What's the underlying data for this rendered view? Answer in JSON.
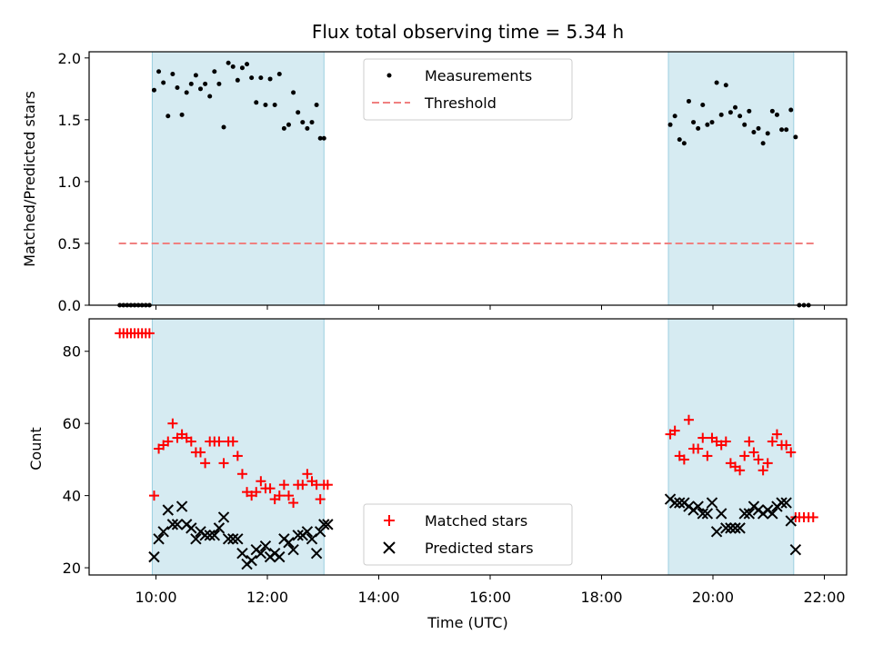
{
  "chart_data": [
    {
      "type": "scatter",
      "title": "Flux total observing time = 5.34 h",
      "xlabel": "",
      "ylabel": "Matched/Predicted stars",
      "ylim": [
        0,
        2.05
      ],
      "xlim": [
        "08:48",
        "22:24"
      ],
      "yticks": [
        "0.0",
        "0.5",
        "1.0",
        "1.5",
        "2.0"
      ],
      "grid": false,
      "legend_position": "top-center",
      "highlight_intervals": [
        [
          "09:56",
          "13:01"
        ],
        [
          "19:12",
          "21:27"
        ]
      ],
      "threshold": {
        "name": "Threshold",
        "value": 0.5,
        "x_range": [
          "09:20",
          "21:50"
        ],
        "color": "#f08080"
      },
      "series": [
        {
          "name": "Measurements",
          "color": "#000000",
          "points": [
            [
              "09:21",
              0
            ],
            [
              "09:25",
              0
            ],
            [
              "09:29",
              0
            ],
            [
              "09:33",
              0
            ],
            [
              "09:37",
              0
            ],
            [
              "09:41",
              0
            ],
            [
              "09:45",
              0
            ],
            [
              "09:49",
              0
            ],
            [
              "09:53",
              0
            ],
            [
              "09:58",
              1.74
            ],
            [
              "10:03",
              1.89
            ],
            [
              "10:08",
              1.8
            ],
            [
              "10:13",
              1.53
            ],
            [
              "10:18",
              1.87
            ],
            [
              "10:23",
              1.76
            ],
            [
              "10:28",
              1.54
            ],
            [
              "10:33",
              1.72
            ],
            [
              "10:38",
              1.79
            ],
            [
              "10:43",
              1.86
            ],
            [
              "10:48",
              1.75
            ],
            [
              "10:53",
              1.79
            ],
            [
              "10:58",
              1.69
            ],
            [
              "11:03",
              1.89
            ],
            [
              "11:08",
              1.79
            ],
            [
              "11:13",
              1.44
            ],
            [
              "11:18",
              1.96
            ],
            [
              "11:23",
              1.93
            ],
            [
              "11:28",
              1.82
            ],
            [
              "11:33",
              1.92
            ],
            [
              "11:38",
              1.95
            ],
            [
              "11:43",
              1.84
            ],
            [
              "11:48",
              1.64
            ],
            [
              "11:53",
              1.84
            ],
            [
              "11:58",
              1.62
            ],
            [
              "12:03",
              1.83
            ],
            [
              "12:08",
              1.62
            ],
            [
              "12:13",
              1.87
            ],
            [
              "12:18",
              1.43
            ],
            [
              "12:23",
              1.46
            ],
            [
              "12:28",
              1.72
            ],
            [
              "12:33",
              1.56
            ],
            [
              "12:38",
              1.48
            ],
            [
              "12:43",
              1.43
            ],
            [
              "12:48",
              1.48
            ],
            [
              "12:53",
              1.62
            ],
            [
              "12:57",
              1.35
            ],
            [
              "13:01",
              1.35
            ],
            [
              "19:14",
              1.46
            ],
            [
              "19:19",
              1.53
            ],
            [
              "19:24",
              1.34
            ],
            [
              "19:29",
              1.31
            ],
            [
              "19:34",
              1.65
            ],
            [
              "19:39",
              1.48
            ],
            [
              "19:44",
              1.43
            ],
            [
              "19:49",
              1.62
            ],
            [
              "19:54",
              1.46
            ],
            [
              "19:59",
              1.48
            ],
            [
              "20:04",
              1.8
            ],
            [
              "20:09",
              1.54
            ],
            [
              "20:14",
              1.78
            ],
            [
              "20:19",
              1.56
            ],
            [
              "20:24",
              1.6
            ],
            [
              "20:29",
              1.53
            ],
            [
              "20:34",
              1.46
            ],
            [
              "20:39",
              1.57
            ],
            [
              "20:44",
              1.4
            ],
            [
              "20:49",
              1.43
            ],
            [
              "20:54",
              1.31
            ],
            [
              "20:59",
              1.39
            ],
            [
              "21:04",
              1.57
            ],
            [
              "21:09",
              1.54
            ],
            [
              "21:14",
              1.42
            ],
            [
              "21:19",
              1.42
            ],
            [
              "21:24",
              1.58
            ],
            [
              "21:29",
              1.36
            ],
            [
              "21:33",
              0
            ],
            [
              "21:38",
              0
            ],
            [
              "21:43",
              0
            ]
          ]
        }
      ]
    },
    {
      "type": "scatter",
      "title": "",
      "xlabel": "Time (UTC)",
      "ylabel": "Count",
      "ylim": [
        18,
        89
      ],
      "xlim": [
        "08:48",
        "22:24"
      ],
      "yticks": [
        "20",
        "40",
        "60",
        "80"
      ],
      "xticks": [
        "10:00",
        "12:00",
        "14:00",
        "16:00",
        "18:00",
        "20:00",
        "22:00"
      ],
      "grid": false,
      "legend_position": "bottom-center",
      "highlight_intervals": [
        [
          "09:56",
          "13:01"
        ],
        [
          "19:12",
          "21:27"
        ]
      ],
      "series": [
        {
          "name": "Matched stars",
          "marker": "plus",
          "color": "#ff0000",
          "points": [
            [
              "09:21",
              85
            ],
            [
              "09:25",
              85
            ],
            [
              "09:29",
              85
            ],
            [
              "09:33",
              85
            ],
            [
              "09:37",
              85
            ],
            [
              "09:41",
              85
            ],
            [
              "09:45",
              85
            ],
            [
              "09:49",
              85
            ],
            [
              "09:53",
              85
            ],
            [
              "09:58",
              40
            ],
            [
              "10:03",
              53
            ],
            [
              "10:08",
              54
            ],
            [
              "10:13",
              55
            ],
            [
              "10:18",
              60
            ],
            [
              "10:23",
              56
            ],
            [
              "10:28",
              57
            ],
            [
              "10:33",
              56
            ],
            [
              "10:38",
              55
            ],
            [
              "10:43",
              52
            ],
            [
              "10:48",
              52
            ],
            [
              "10:53",
              49
            ],
            [
              "10:58",
              55
            ],
            [
              "11:03",
              55
            ],
            [
              "11:08",
              55
            ],
            [
              "11:13",
              49
            ],
            [
              "11:18",
              55
            ],
            [
              "11:23",
              55
            ],
            [
              "11:28",
              51
            ],
            [
              "11:33",
              46
            ],
            [
              "11:38",
              41
            ],
            [
              "11:43",
              40
            ],
            [
              "11:48",
              41
            ],
            [
              "11:53",
              44
            ],
            [
              "11:58",
              42
            ],
            [
              "12:03",
              42
            ],
            [
              "12:08",
              39
            ],
            [
              "12:13",
              40
            ],
            [
              "12:18",
              43
            ],
            [
              "12:23",
              40
            ],
            [
              "12:28",
              38
            ],
            [
              "12:33",
              43
            ],
            [
              "12:38",
              43
            ],
            [
              "12:43",
              46
            ],
            [
              "12:48",
              44
            ],
            [
              "12:53",
              43
            ],
            [
              "12:57",
              39
            ],
            [
              "13:01",
              43
            ],
            [
              "13:05",
              43
            ],
            [
              "19:14",
              57
            ],
            [
              "19:19",
              58
            ],
            [
              "19:24",
              51
            ],
            [
              "19:29",
              50
            ],
            [
              "19:34",
              61
            ],
            [
              "19:39",
              53
            ],
            [
              "19:44",
              53
            ],
            [
              "19:49",
              56
            ],
            [
              "19:54",
              51
            ],
            [
              "19:59",
              56
            ],
            [
              "20:04",
              55
            ],
            [
              "20:09",
              54
            ],
            [
              "20:14",
              55
            ],
            [
              "20:19",
              49
            ],
            [
              "20:24",
              48
            ],
            [
              "20:29",
              47
            ],
            [
              "20:34",
              51
            ],
            [
              "20:39",
              55
            ],
            [
              "20:44",
              52
            ],
            [
              "20:49",
              50
            ],
            [
              "20:54",
              47
            ],
            [
              "20:59",
              49
            ],
            [
              "21:04",
              55
            ],
            [
              "21:09",
              57
            ],
            [
              "21:14",
              54
            ],
            [
              "21:19",
              54
            ],
            [
              "21:24",
              52
            ],
            [
              "21:29",
              34
            ],
            [
              "21:33",
              34
            ],
            [
              "21:38",
              34
            ],
            [
              "21:43",
              34
            ],
            [
              "21:48",
              34
            ]
          ]
        },
        {
          "name": "Predicted stars",
          "marker": "x",
          "color": "#000000",
          "points": [
            [
              "09:58",
              23
            ],
            [
              "10:03",
              28
            ],
            [
              "10:08",
              30
            ],
            [
              "10:13",
              36
            ],
            [
              "10:18",
              32
            ],
            [
              "10:23",
              32
            ],
            [
              "10:28",
              37
            ],
            [
              "10:33",
              32
            ],
            [
              "10:38",
              31
            ],
            [
              "10:43",
              28
            ],
            [
              "10:48",
              30
            ],
            [
              "10:53",
              29
            ],
            [
              "10:58",
              29
            ],
            [
              "11:03",
              29
            ],
            [
              "11:08",
              31
            ],
            [
              "11:13",
              34
            ],
            [
              "11:18",
              28
            ],
            [
              "11:23",
              28
            ],
            [
              "11:28",
              28
            ],
            [
              "11:33",
              24
            ],
            [
              "11:38",
              21
            ],
            [
              "11:43",
              22
            ],
            [
              "11:48",
              25
            ],
            [
              "11:53",
              24
            ],
            [
              "11:58",
              26
            ],
            [
              "12:03",
              23
            ],
            [
              "12:08",
              24
            ],
            [
              "12:13",
              23
            ],
            [
              "12:18",
              28
            ],
            [
              "12:23",
              27
            ],
            [
              "12:28",
              25
            ],
            [
              "12:33",
              29
            ],
            [
              "12:38",
              29
            ],
            [
              "12:43",
              30
            ],
            [
              "12:48",
              28
            ],
            [
              "12:53",
              24
            ],
            [
              "12:57",
              30
            ],
            [
              "13:01",
              32
            ],
            [
              "13:05",
              32
            ],
            [
              "19:14",
              39
            ],
            [
              "19:19",
              38
            ],
            [
              "19:24",
              38
            ],
            [
              "19:29",
              38
            ],
            [
              "19:34",
              37
            ],
            [
              "19:39",
              36
            ],
            [
              "19:44",
              37
            ],
            [
              "19:49",
              35
            ],
            [
              "19:54",
              35
            ],
            [
              "19:59",
              38
            ],
            [
              "20:04",
              30
            ],
            [
              "20:09",
              35
            ],
            [
              "20:14",
              31
            ],
            [
              "20:19",
              31
            ],
            [
              "20:24",
              31
            ],
            [
              "20:29",
              31
            ],
            [
              "20:34",
              35
            ],
            [
              "20:39",
              35
            ],
            [
              "20:44",
              37
            ],
            [
              "20:49",
              36
            ],
            [
              "20:54",
              35
            ],
            [
              "20:59",
              36
            ],
            [
              "21:04",
              35
            ],
            [
              "21:09",
              37
            ],
            [
              "21:14",
              38
            ],
            [
              "21:19",
              38
            ],
            [
              "21:24",
              33
            ],
            [
              "21:29",
              25
            ]
          ]
        }
      ]
    }
  ]
}
